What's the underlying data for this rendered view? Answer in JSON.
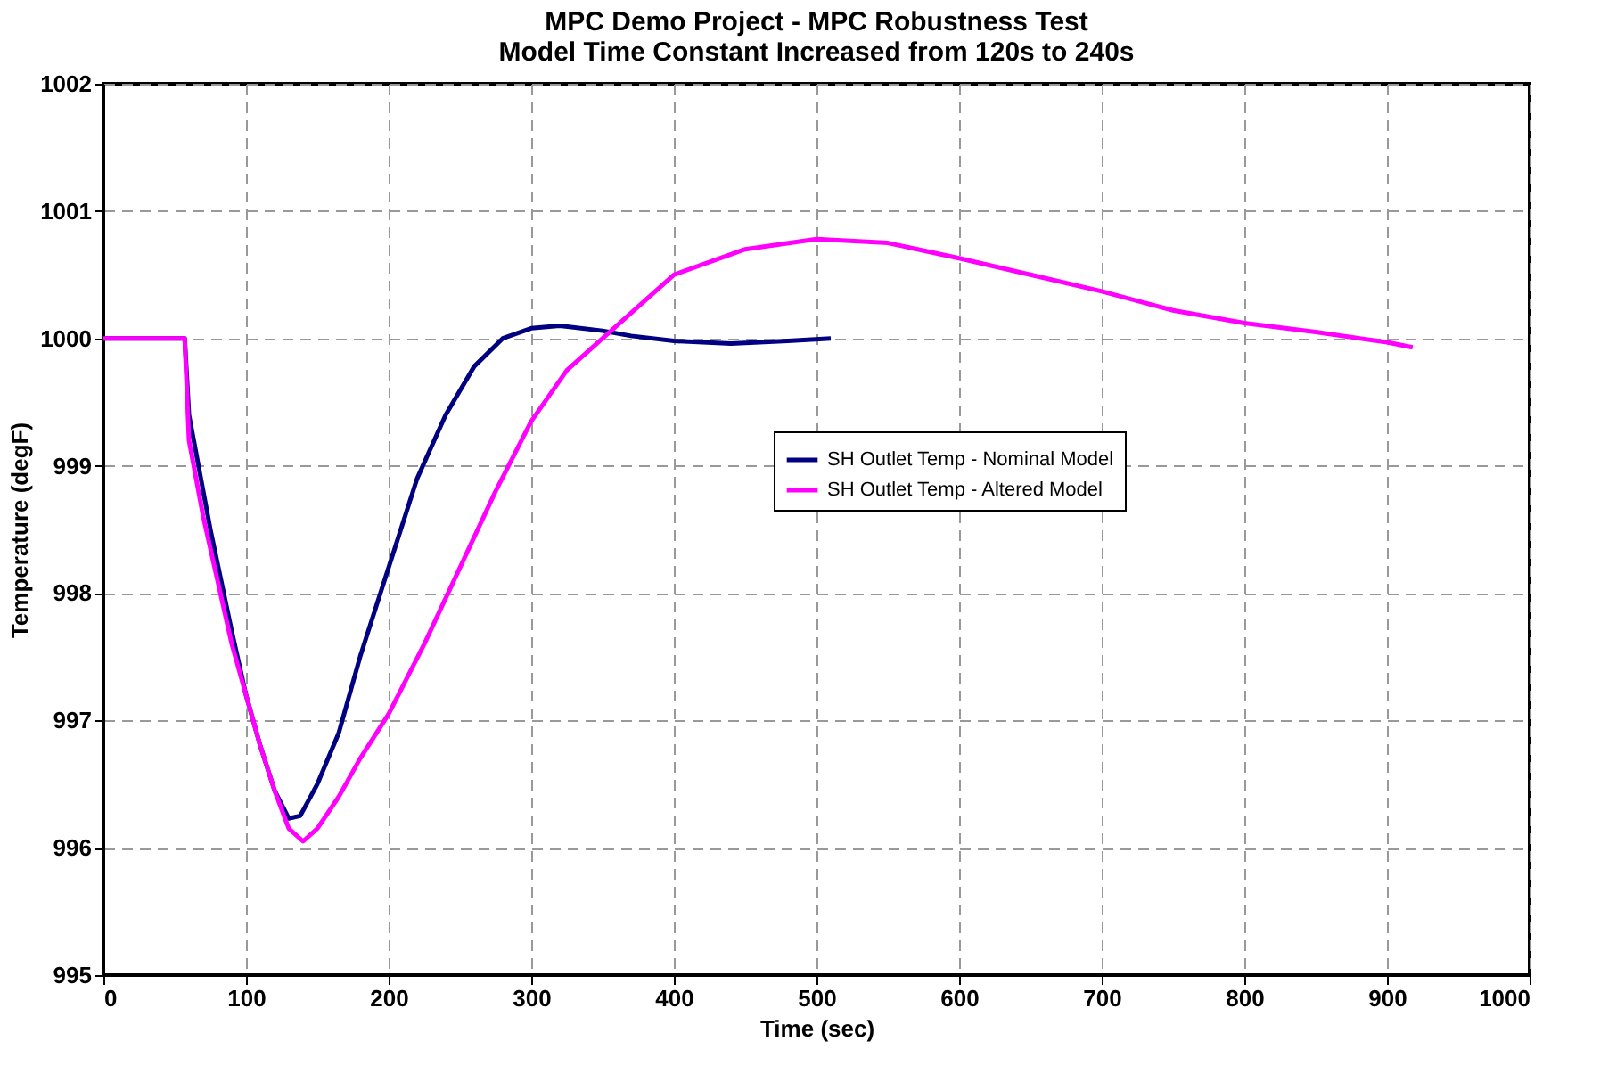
{
  "chart_data": {
    "type": "line",
    "title": [
      "MPC Demo Project - MPC Robustness Test",
      "Model Time Constant Increased from 120s to 240s"
    ],
    "xlabel": "Time (sec)",
    "ylabel": "Temperature (degF)",
    "series": [
      {
        "name": "SH Outlet Temp - Nominal Model",
        "color": "#000080",
        "x": [
          0,
          57,
          60,
          65,
          75,
          90,
          100,
          110,
          120,
          130,
          138,
          150,
          165,
          180,
          200,
          220,
          240,
          260,
          280,
          300,
          320,
          350,
          370,
          400,
          440,
          480,
          510
        ],
        "values": [
          1000,
          1000,
          999.4,
          999.1,
          998.5,
          997.7,
          997.2,
          996.8,
          996.45,
          996.23,
          996.25,
          996.5,
          996.9,
          997.5,
          998.2,
          998.9,
          999.4,
          999.78,
          1000.0,
          1000.08,
          1000.1,
          1000.06,
          1000.02,
          999.98,
          999.96,
          999.98,
          1000.0
        ]
      },
      {
        "name": "SH Outlet Temp - Altered Model",
        "color": "#ff00ff",
        "x": [
          0,
          57,
          60,
          70,
          80,
          90,
          100,
          110,
          120,
          130,
          140,
          150,
          165,
          180,
          200,
          225,
          250,
          275,
          300,
          325,
          350,
          400,
          450,
          500,
          550,
          600,
          650,
          700,
          750,
          800,
          850,
          900,
          918
        ],
        "values": [
          1000,
          1000,
          999.2,
          998.6,
          998.1,
          997.6,
          997.2,
          996.8,
          996.45,
          996.15,
          996.05,
          996.15,
          996.4,
          996.7,
          997.05,
          997.6,
          998.2,
          998.8,
          999.35,
          999.75,
          1000.0,
          1000.5,
          1000.7,
          1000.78,
          1000.75,
          1000.63,
          1000.5,
          1000.37,
          1000.22,
          1000.12,
          1000.05,
          999.97,
          999.93
        ]
      }
    ],
    "xlim": [
      0,
      1000
    ],
    "xticks": [
      0,
      100,
      200,
      300,
      400,
      500,
      600,
      700,
      800,
      900,
      1000
    ],
    "ylim": [
      995,
      1002
    ],
    "yticks": [
      995,
      996,
      997,
      998,
      999,
      1000,
      1001,
      1002
    ],
    "grid": true,
    "legend": "right",
    "marker": "none",
    "line_style": "solid"
  }
}
